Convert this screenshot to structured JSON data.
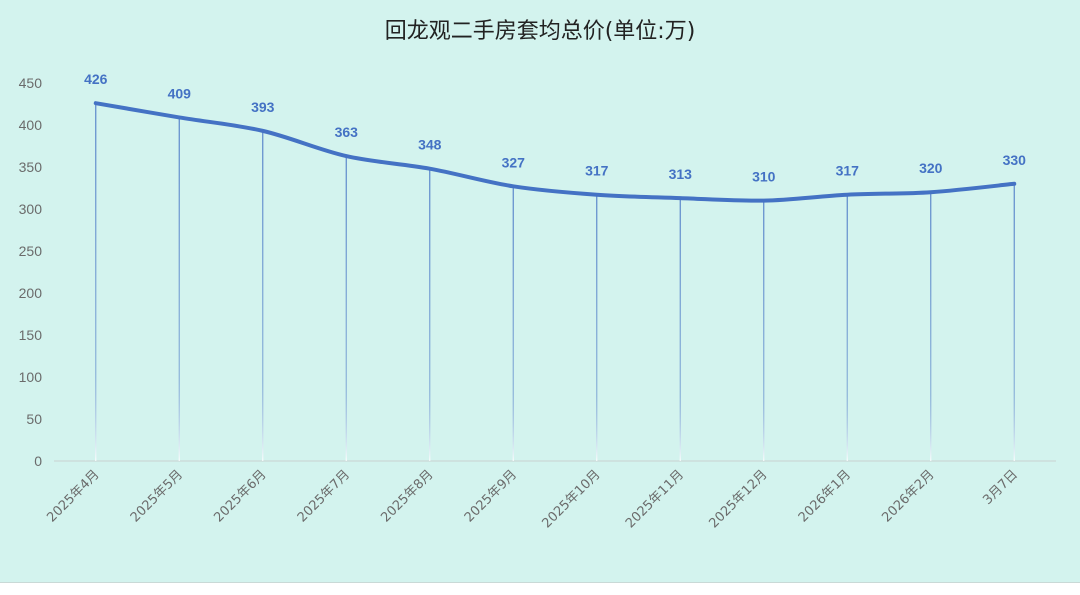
{
  "chart_data": {
    "type": "line",
    "title": "回龙观二手房套均总价(单位:万)",
    "xlabel": "",
    "ylabel": "",
    "categories": [
      "2025年4月",
      "2025年5月",
      "2025年6月",
      "2025年7月",
      "2025年8月",
      "2025年9月",
      "2025年10月",
      "2025年11月",
      "2025年12月",
      "2026年1月",
      "2026年2月",
      "3月7日"
    ],
    "series": [
      {
        "values": [
          426,
          409,
          393,
          363,
          348,
          327,
          317,
          313,
          310,
          317,
          320,
          330
        ]
      }
    ],
    "data_labels": [
      "426",
      "409",
      "393",
      "363",
      "348",
      "327",
      "317",
      "313",
      "310",
      "317",
      "320",
      "330"
    ],
    "ylim": [
      0,
      450
    ],
    "yticks": [
      "0",
      "50",
      "100",
      "150",
      "200",
      "250",
      "300",
      "350",
      "400",
      "450"
    ],
    "grid": false,
    "smooth": true,
    "drop_lines": true,
    "colors": {
      "background": "#d3f3ee",
      "line": "#4472c4",
      "labels": "#4472c4",
      "axis_text": "#6b6b6b"
    }
  }
}
